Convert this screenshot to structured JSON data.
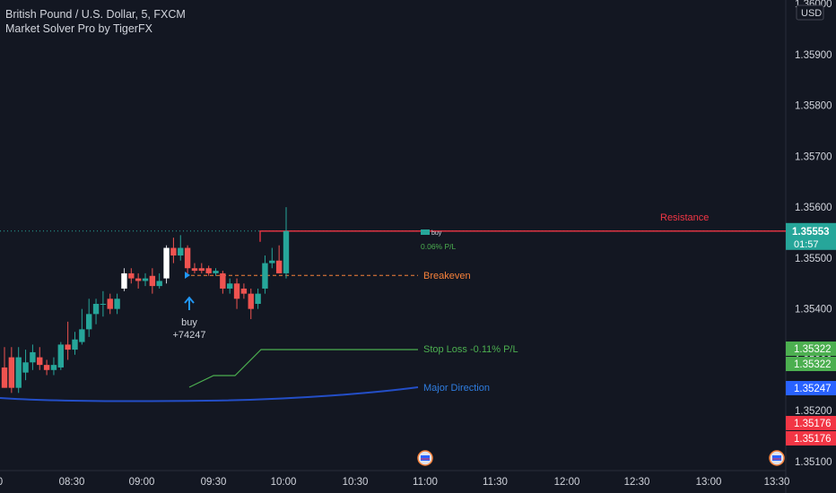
{
  "header": {
    "title": "British Pound / U.S. Dollar, 5, FXCM",
    "indicator": "Market Solver Pro by TigerFX"
  },
  "colors": {
    "background": "#131722",
    "up": "#26a69a",
    "down": "#ef5350",
    "signal_candle": "#ffffff",
    "resistance": "#f23645",
    "breakeven": "#f7813a",
    "stop_loss": "#4caf50",
    "major_direction": "#2962ff",
    "buy_arrow": "#2196f3",
    "axis_text": "#d1d4dc"
  },
  "chart_data": {
    "type": "candlestick",
    "y_axis": {
      "currency": "USD",
      "ticks": [
        "1.36000",
        "1.35900",
        "1.35800",
        "1.35700",
        "1.35600",
        "1.35500",
        "1.35400",
        "1.35300",
        "1.35200",
        "1.35100"
      ]
    },
    "x_axis": {
      "ticks": [
        "8:00",
        "08:30",
        "09:00",
        "09:30",
        "10:00",
        "10:30",
        "11:00",
        "11:30",
        "12:00",
        "12:30",
        "13:00",
        "13:30"
      ]
    },
    "current_price": "1.35553",
    "countdown": "01:57",
    "price_labels": [
      {
        "value": "1.35322",
        "color": "#4caf50"
      },
      {
        "value": "1.35322",
        "color": "#4caf50"
      },
      {
        "value": "1.35247",
        "color": "#2962ff"
      },
      {
        "value": "1.35176",
        "color": "#f23645"
      },
      {
        "value": "1.35176",
        "color": "#f23645"
      }
    ],
    "lines": {
      "resistance_label": "Resistance",
      "breakeven_label": "Breakeven",
      "stop_loss_label": "Stop Loss -0.11% P/L",
      "major_direction_label": "Major Direction",
      "buy_label": "buy",
      "buy_value": "+74247",
      "pl_label": "0.06% P/L",
      "buy_tag": "buy"
    },
    "candles": [
      {
        "o": 1.35285,
        "h": 1.35325,
        "l": 1.35245,
        "c": 1.35245
      },
      {
        "o": 1.35305,
        "h": 1.35325,
        "l": 1.35235,
        "c": 1.35245
      },
      {
        "o": 1.35245,
        "h": 1.35325,
        "l": 1.35235,
        "c": 1.35305
      },
      {
        "o": 1.35275,
        "h": 1.3532,
        "l": 1.3526,
        "c": 1.35295
      },
      {
        "o": 1.35295,
        "h": 1.3533,
        "l": 1.3528,
        "c": 1.35315
      },
      {
        "o": 1.35305,
        "h": 1.35325,
        "l": 1.3528,
        "c": 1.3529
      },
      {
        "o": 1.3529,
        "h": 1.353,
        "l": 1.3527,
        "c": 1.3528
      },
      {
        "o": 1.3528,
        "h": 1.35305,
        "l": 1.3527,
        "c": 1.3529
      },
      {
        "o": 1.35285,
        "h": 1.35335,
        "l": 1.3528,
        "c": 1.3533
      },
      {
        "o": 1.3533,
        "h": 1.35375,
        "l": 1.353,
        "c": 1.3532
      },
      {
        "o": 1.3532,
        "h": 1.35355,
        "l": 1.3531,
        "c": 1.3534
      },
      {
        "o": 1.35335,
        "h": 1.354,
        "l": 1.3533,
        "c": 1.3536
      },
      {
        "o": 1.3536,
        "h": 1.3542,
        "l": 1.35345,
        "c": 1.3539
      },
      {
        "o": 1.3539,
        "h": 1.3542,
        "l": 1.3537,
        "c": 1.3541
      },
      {
        "o": 1.3541,
        "h": 1.35435,
        "l": 1.35385,
        "c": 1.3541
      },
      {
        "o": 1.3542,
        "h": 1.3543,
        "l": 1.3539,
        "c": 1.354
      },
      {
        "o": 1.354,
        "h": 1.3543,
        "l": 1.3539,
        "c": 1.3542
      },
      {
        "o": 1.3544,
        "h": 1.3548,
        "l": 1.35435,
        "c": 1.3547,
        "signal": true
      },
      {
        "o": 1.3547,
        "h": 1.3548,
        "l": 1.3545,
        "c": 1.3546
      },
      {
        "o": 1.3546,
        "h": 1.3547,
        "l": 1.3544,
        "c": 1.35455
      },
      {
        "o": 1.35455,
        "h": 1.3547,
        "l": 1.35445,
        "c": 1.3546
      },
      {
        "o": 1.35465,
        "h": 1.3548,
        "l": 1.3543,
        "c": 1.35445
      },
      {
        "o": 1.35445,
        "h": 1.3547,
        "l": 1.3544,
        "c": 1.35455
      },
      {
        "o": 1.3546,
        "h": 1.35525,
        "l": 1.3545,
        "c": 1.3552,
        "signal": true
      },
      {
        "o": 1.3552,
        "h": 1.3554,
        "l": 1.3549,
        "c": 1.35505
      },
      {
        "o": 1.35505,
        "h": 1.35545,
        "l": 1.35495,
        "c": 1.3552
      },
      {
        "o": 1.3552,
        "h": 1.35525,
        "l": 1.3547,
        "c": 1.3548
      },
      {
        "o": 1.3548,
        "h": 1.3549,
        "l": 1.3547,
        "c": 1.35475
      },
      {
        "o": 1.3548,
        "h": 1.3549,
        "l": 1.3547,
        "c": 1.35475
      },
      {
        "o": 1.3548,
        "h": 1.35485,
        "l": 1.35465,
        "c": 1.3547
      },
      {
        "o": 1.3547,
        "h": 1.3548,
        "l": 1.35465,
        "c": 1.35475
      },
      {
        "o": 1.3547,
        "h": 1.35475,
        "l": 1.3543,
        "c": 1.3544
      },
      {
        "o": 1.3544,
        "h": 1.3546,
        "l": 1.3543,
        "c": 1.3545
      },
      {
        "o": 1.3545,
        "h": 1.3546,
        "l": 1.354,
        "c": 1.3542
      },
      {
        "o": 1.3544,
        "h": 1.3545,
        "l": 1.3542,
        "c": 1.3543
      },
      {
        "o": 1.3543,
        "h": 1.3544,
        "l": 1.3538,
        "c": 1.354
      },
      {
        "o": 1.3541,
        "h": 1.3544,
        "l": 1.354,
        "c": 1.3543
      },
      {
        "o": 1.3544,
        "h": 1.35505,
        "l": 1.3543,
        "c": 1.3549
      },
      {
        "o": 1.3549,
        "h": 1.3552,
        "l": 1.3548,
        "c": 1.35495
      },
      {
        "o": 1.35495,
        "h": 1.35525,
        "l": 1.3547,
        "c": 1.3547
      },
      {
        "o": 1.3547,
        "h": 1.356,
        "l": 1.3546,
        "c": 1.35553
      }
    ]
  }
}
